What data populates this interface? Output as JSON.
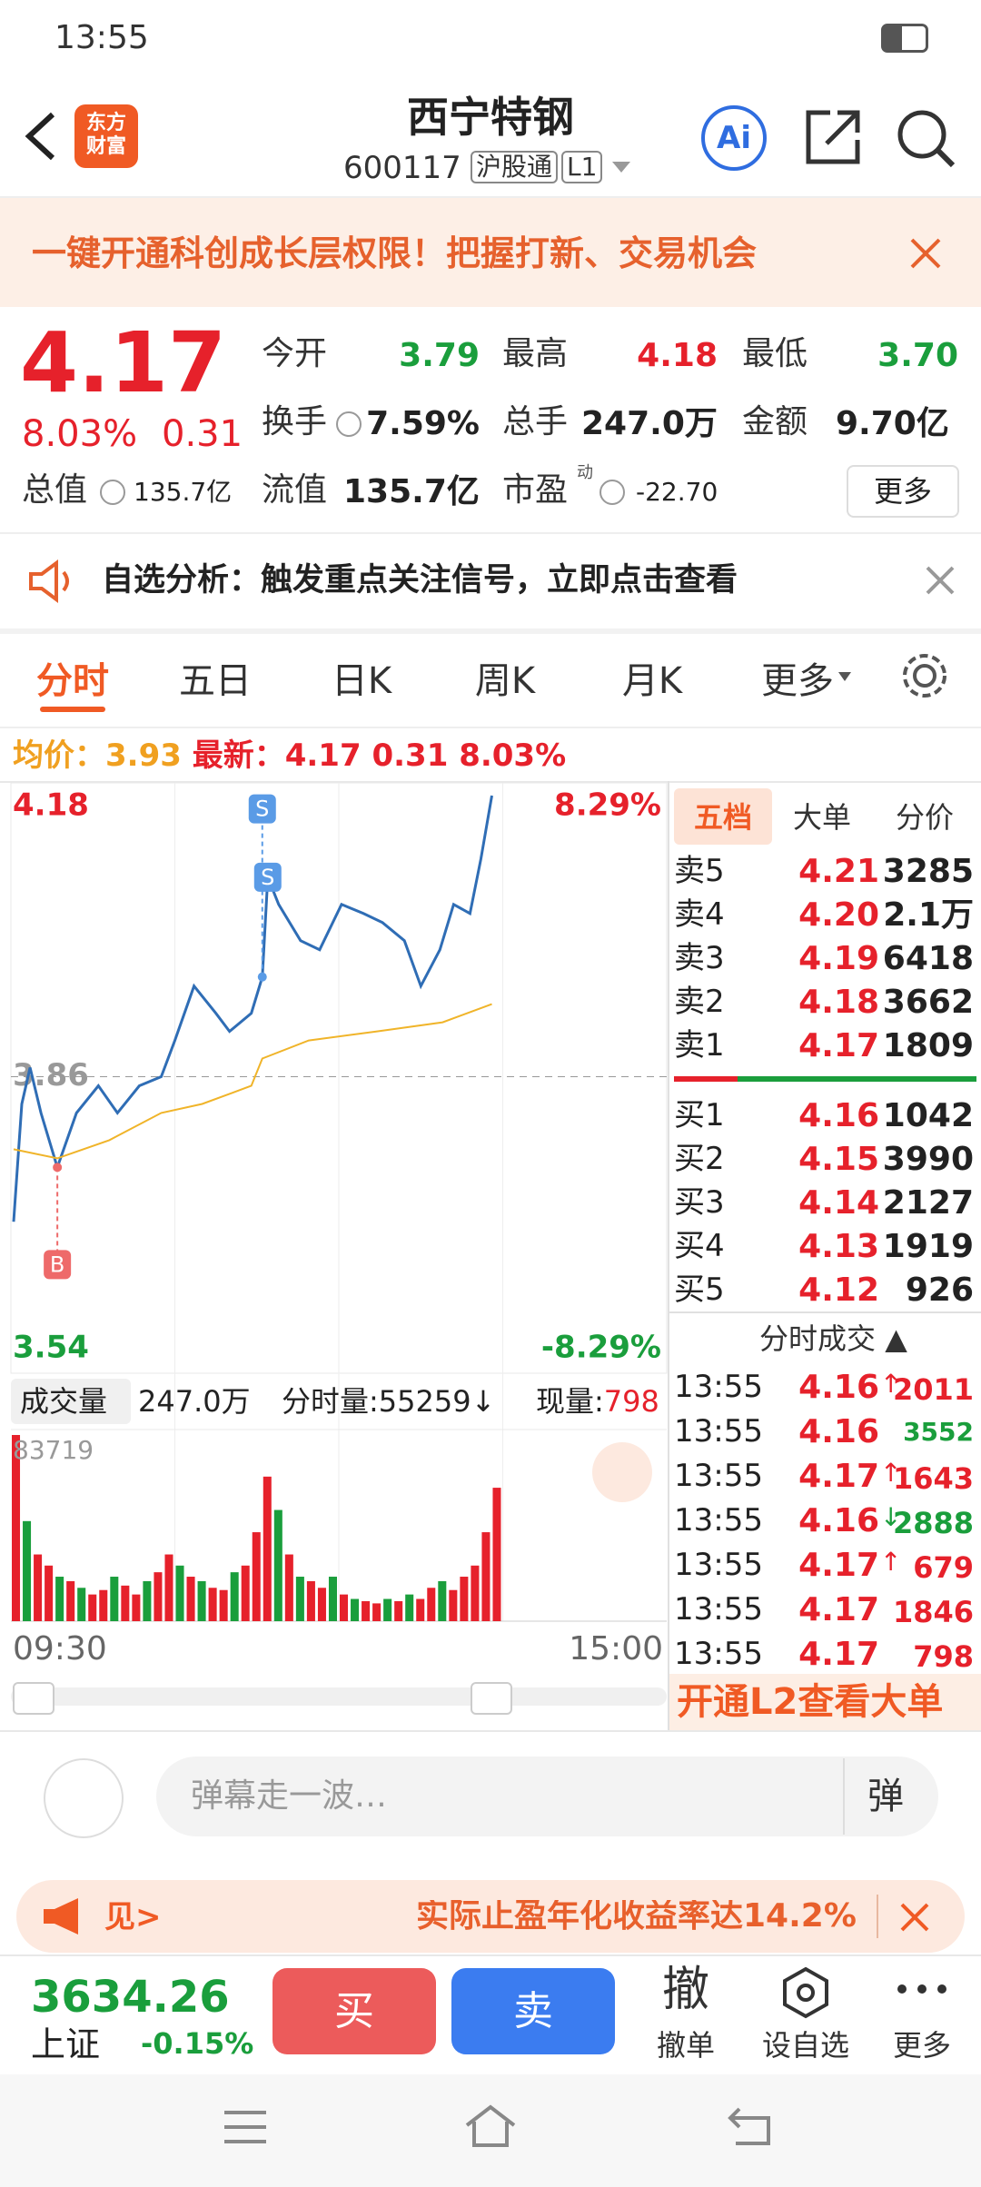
{
  "status_bar": {
    "time": "13:55"
  },
  "header": {
    "logo": [
      "东方",
      "财富"
    ],
    "title": "西宁特钢",
    "code": "600117",
    "tags": [
      "沪股通",
      "L1"
    ],
    "ai": "Ai"
  },
  "banner": {
    "text": "一键开通科创成长层权限！把握打新、交易机会"
  },
  "quote": {
    "price": "4.17",
    "change_pct": "8.03%",
    "change": "0.31",
    "stats": [
      {
        "label": "今开",
        "value": "3.79"
      },
      {
        "label": "最高",
        "value": "4.18"
      },
      {
        "label": "最低",
        "value": "3.70"
      },
      {
        "label": "换手",
        "value": "7.59%"
      },
      {
        "label": "总手",
        "value": "247.0万"
      },
      {
        "label": "金额",
        "value": "9.70亿"
      },
      {
        "label": "总值",
        "value": "135.7亿"
      },
      {
        "label": "流值",
        "value": "135.7亿"
      },
      {
        "label": "市盈",
        "sup": "动",
        "value": "-22.70"
      }
    ],
    "more": "更多"
  },
  "alert": {
    "text": "自选分析：触发重点关注信号，立即点击查看"
  },
  "tabs": [
    "分时",
    "五日",
    "日K",
    "周K",
    "月K",
    "更多"
  ],
  "info": {
    "avg_label": "均价：",
    "avg": "3.93",
    "latest_label": "最新：",
    "latest": "4.17",
    "change": "0.31",
    "change_pct": "8.03%"
  },
  "chart_data": [
    {
      "type": "line",
      "series": [
        {
          "color": "#2f6db5",
          "x": [
            1,
            4,
            7,
            11,
            17,
            24,
            32,
            39,
            47,
            55,
            60,
            67,
            75,
            80,
            88,
            92,
            94,
            98,
            106,
            113,
            121,
            129,
            136,
            144,
            150,
            157,
            162,
            168,
            172,
            176
          ],
          "values": [
            3.7,
            3.83,
            3.87,
            3.82,
            3.76,
            3.82,
            3.85,
            3.82,
            3.85,
            3.86,
            3.9,
            3.96,
            3.93,
            3.91,
            3.93,
            3.97,
            4.08,
            4.05,
            4.01,
            4.0,
            4.05,
            4.04,
            4.03,
            4.01,
            3.96,
            4.0,
            4.05,
            4.04,
            4.1,
            4.17
          ]
        },
        {
          "color": "#f0b429",
          "x": [
            1,
            17,
            36,
            55,
            70,
            88,
            92,
            109,
            134,
            158,
            176
          ],
          "values": [
            3.78,
            3.77,
            3.79,
            3.82,
            3.83,
            3.85,
            3.88,
            3.9,
            3.91,
            3.92,
            3.94
          ]
        }
      ],
      "annotations": [
        {
          "label": "B",
          "x": 17,
          "value": 3.76
        },
        {
          "label": "S",
          "x": 92,
          "value": 3.97
        },
        {
          "label": "S",
          "x": 94,
          "value": 4.08
        }
      ],
      "xlim": [
        0,
        240
      ],
      "ylim": [
        3.54,
        4.18
      ],
      "yticks": [
        3.54,
        3.86,
        4.18
      ],
      "y2lim": [
        -8.29,
        8.29
      ],
      "y2ticks": [
        {
          "value": -8.29,
          "label": "-8.29%"
        },
        {
          "value": 8.29,
          "label": "8.29%"
        }
      ]
    },
    {
      "type": "bar",
      "title": "成交量",
      "total": "247.0万",
      "minute_volume": "分时量:55259↓",
      "current_label": "现量:",
      "current": "798",
      "x": [
        0,
        4,
        8,
        12,
        16,
        20,
        24,
        28,
        32,
        36,
        40,
        44,
        48,
        52,
        56,
        60,
        64,
        68,
        72,
        76,
        80,
        84,
        88,
        92,
        96,
        100,
        104,
        108,
        112,
        116,
        120,
        124,
        128,
        132,
        136,
        140,
        144,
        148,
        152,
        156,
        160,
        164,
        168,
        172,
        176
      ],
      "values": [
        83719,
        45000,
        30000,
        25000,
        20000,
        18000,
        15000,
        12000,
        14000,
        20000,
        16000,
        12000,
        18000,
        22000,
        30000,
        25000,
        20000,
        18000,
        15000,
        14000,
        22000,
        25000,
        40000,
        65000,
        50000,
        30000,
        20000,
        18000,
        15000,
        20000,
        12000,
        10000,
        9000,
        8000,
        10000,
        9000,
        12000,
        10000,
        15000,
        18000,
        14000,
        20000,
        25000,
        40000,
        60000
      ],
      "colors": [
        "#e6212b",
        "#1a9e3c",
        "#e6212b",
        "#e6212b",
        "#1a9e3c",
        "#e6212b",
        "#1a9e3c",
        "#e6212b",
        "#e6212b",
        "#1a9e3c",
        "#e6212b",
        "#e6212b",
        "#1a9e3c",
        "#e6212b",
        "#e6212b",
        "#1a9e3c",
        "#e6212b",
        "#1a9e3c",
        "#e6212b",
        "#e6212b",
        "#1a9e3c",
        "#e6212b",
        "#e6212b",
        "#e6212b",
        "#1a9e3c",
        "#e6212b",
        "#1a9e3c",
        "#e6212b",
        "#e6212b",
        "#1a9e3c",
        "#e6212b",
        "#1a9e3c",
        "#e6212b",
        "#e6212b",
        "#1a9e3c",
        "#e6212b",
        "#1a9e3c",
        "#e6212b",
        "#e6212b",
        "#1a9e3c",
        "#e6212b",
        "#e6212b",
        "#e6212b",
        "#e6212b",
        "#e6212b"
      ],
      "xlim": [
        0,
        240
      ],
      "xticks": [
        {
          "value": 0,
          "label": "09:30"
        },
        {
          "value": 240,
          "label": "15:00"
        }
      ],
      "ylim": [
        0,
        83719
      ],
      "yticks": [
        83719
      ]
    }
  ],
  "order_book": {
    "tabs": [
      "五档",
      "大单",
      "分价"
    ],
    "asks": [
      {
        "label": "卖5",
        "price": "4.21",
        "volume": "3285"
      },
      {
        "label": "卖4",
        "price": "4.20",
        "volume": "2.1万"
      },
      {
        "label": "卖3",
        "price": "4.19",
        "volume": "6418"
      },
      {
        "label": "卖2",
        "price": "4.18",
        "volume": "3662"
      },
      {
        "label": "卖1",
        "price": "4.17",
        "volume": "1809"
      }
    ],
    "bids": [
      {
        "label": "买1",
        "price": "4.16",
        "volume": "1042"
      },
      {
        "label": "买2",
        "price": "4.15",
        "volume": "3990"
      },
      {
        "label": "买3",
        "price": "4.14",
        "volume": "2127"
      },
      {
        "label": "买4",
        "price": "4.13",
        "volume": "1919"
      },
      {
        "label": "买5",
        "price": "4.12",
        "volume": "926"
      }
    ]
  },
  "trades": {
    "title": "分时成交",
    "rows": [
      {
        "time": "13:55",
        "price": "4.16",
        "dir": "↑",
        "volume": "2011",
        "color": "#e6212b"
      },
      {
        "time": "13:55",
        "price": "4.16",
        "volume": "3552",
        "color": "#1a9e3c"
      },
      {
        "time": "13:55",
        "price": "4.17",
        "dir": "↑",
        "volume": "1643",
        "color": "#e6212b"
      },
      {
        "time": "13:55",
        "price": "4.16",
        "dir": "↓",
        "volume": "2888",
        "color": "#1a9e3c"
      },
      {
        "time": "13:55",
        "price": "4.17",
        "dir": "↑",
        "volume": "679",
        "color": "#e6212b"
      },
      {
        "time": "13:55",
        "price": "4.17",
        "volume": "1846",
        "color": "#e6212b"
      },
      {
        "time": "13:55",
        "price": "4.17",
        "volume": "798",
        "color": "#e6212b"
      }
    ]
  },
  "l2": "开通L2查看大单",
  "comment": {
    "placeholder": "弹幕走一波…",
    "button": "弹"
  },
  "ad": {
    "link": "见>",
    "text": "实际止盈年化收益率达14.2%"
  },
  "bottom": {
    "index_value": "3634.26",
    "index_name": "上证",
    "index_change": "-0.15%",
    "buy": "买",
    "sell": "卖",
    "cancel_icon": "撤",
    "cancel": "撤单",
    "watch": "设自选",
    "more": "更多"
  }
}
